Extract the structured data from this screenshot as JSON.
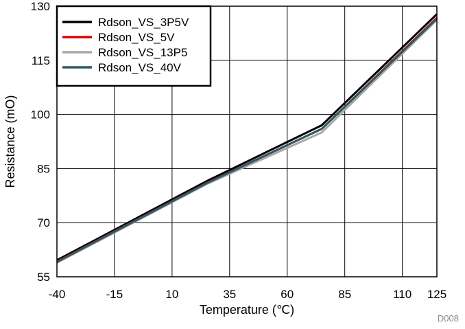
{
  "chart_data": {
    "type": "line",
    "title": "",
    "xlabel": "Temperature (℃)",
    "ylabel": "Resistance (mΟ)",
    "xlim": [
      -40,
      125
    ],
    "ylim": [
      55,
      130
    ],
    "xticks": [
      -40,
      -15,
      10,
      35,
      60,
      85,
      110,
      125
    ],
    "yticks": [
      55,
      70,
      85,
      100,
      115,
      130
    ],
    "grid": true,
    "legend_position": "top-left",
    "series": [
      {
        "name": "Rdson_VS_3P5V",
        "color": "#000000",
        "x": [
          -40,
          25,
          75,
          125
        ],
        "y": [
          59.6,
          81.5,
          97.0,
          127.8
        ]
      },
      {
        "name": "Rdson_VS_5V",
        "color": "#e00000",
        "x": [
          -40,
          25,
          75,
          125
        ],
        "y": [
          59.2,
          81.0,
          96.0,
          126.8
        ]
      },
      {
        "name": "Rdson_VS_13P5",
        "color": "#a8a8a8",
        "x": [
          -40,
          25,
          75,
          125
        ],
        "y": [
          58.9,
          80.7,
          95.0,
          126.2
        ]
      },
      {
        "name": "Rdson_VS_40V",
        "color": "#2e5b66",
        "x": [
          -40,
          25,
          75,
          125
        ],
        "y": [
          59.1,
          80.9,
          96.0,
          126.5
        ]
      }
    ],
    "figure_id": "D008"
  }
}
